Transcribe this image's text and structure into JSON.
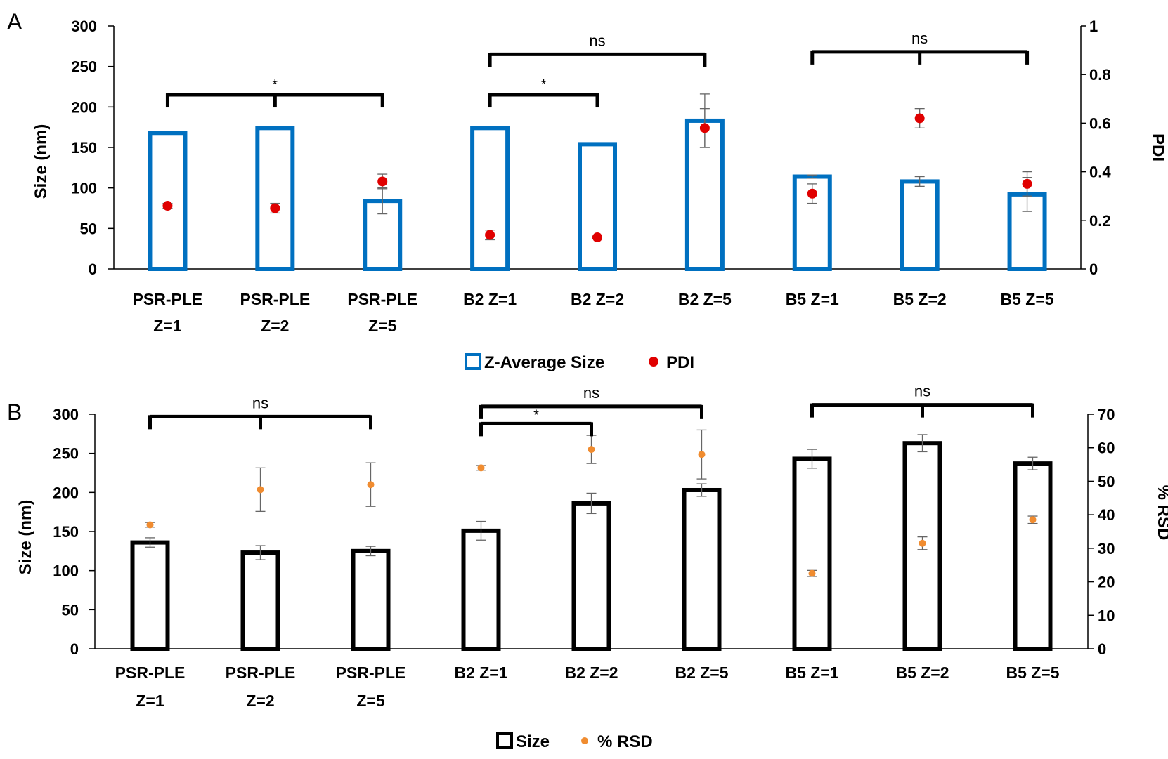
{
  "chart_data": [
    {
      "panel_label": "A",
      "type": "bar",
      "categories": [
        [
          "PSR-PLE",
          "Z=1"
        ],
        [
          "PSR-PLE",
          "Z=2"
        ],
        [
          "PSR-PLE",
          "Z=5"
        ],
        [
          "B2 Z=1"
        ],
        [
          "B2 Z=2"
        ],
        [
          "B2 Z=5"
        ],
        [
          "B5 Z=1"
        ],
        [
          "B5 Z=2"
        ],
        [
          "B5 Z=5"
        ]
      ],
      "ylabel": "Size (nm)",
      "y2label": "PDI",
      "ylim": [
        0,
        300
      ],
      "y2lim": [
        0,
        1
      ],
      "yticks": [
        "0",
        "50",
        "100",
        "150",
        "200",
        "250",
        "300"
      ],
      "y2ticks": [
        "0",
        "0.2",
        "0.4",
        "0.6",
        "0.8",
        "1"
      ],
      "series": [
        {
          "name": "Z-Average Size",
          "kind": "bar",
          "axis": "left",
          "color": "#0070c0",
          "values": [
            168,
            174,
            84,
            174,
            154,
            183,
            114,
            108,
            92
          ],
          "errors": [
            0,
            0,
            16,
            0,
            0,
            33,
            2,
            6,
            21
          ]
        },
        {
          "name": "PDI",
          "kind": "point",
          "axis": "right",
          "color": "#e00000",
          "values": [
            0.26,
            0.25,
            0.36,
            0.14,
            0.13,
            0.58,
            0.31,
            0.62,
            0.35
          ],
          "errors": [
            0.01,
            0.02,
            0.03,
            0.02,
            0.005,
            0.08,
            0.04,
            0.04,
            0.05
          ]
        }
      ],
      "significance": [
        {
          "label": "*",
          "indices": [
            0,
            1,
            2
          ],
          "level": 215
        },
        {
          "label": "*",
          "indices": [
            3,
            4
          ],
          "level": 215
        },
        {
          "label": "ns",
          "indices": [
            3,
            5
          ],
          "level": 265
        },
        {
          "label": "ns",
          "indices": [
            6,
            7,
            8
          ],
          "level": 268
        }
      ],
      "legend_position": "bottom"
    },
    {
      "panel_label": "B",
      "type": "bar",
      "categories": [
        [
          "PSR-PLE",
          "Z=1"
        ],
        [
          "PSR-PLE",
          "Z=2"
        ],
        [
          "PSR-PLE",
          "Z=5"
        ],
        [
          "B2 Z=1"
        ],
        [
          "B2 Z=2"
        ],
        [
          "B2 Z=5"
        ],
        [
          "B5 Z=1"
        ],
        [
          "B5 Z=2"
        ],
        [
          "B5 Z=5"
        ]
      ],
      "ylabel": "Size (nm)",
      "y2label": "% RSD",
      "ylim": [
        0,
        300
      ],
      "y2lim": [
        0,
        70
      ],
      "yticks": [
        "0",
        "50",
        "100",
        "150",
        "200",
        "250",
        "300"
      ],
      "y2ticks": [
        "0",
        "10",
        "20",
        "30",
        "40",
        "50",
        "60",
        "70"
      ],
      "series": [
        {
          "name": "Size",
          "kind": "bar",
          "axis": "left",
          "color": "#000000",
          "values": [
            136,
            123,
            125,
            151,
            186,
            203,
            243,
            263,
            237
          ],
          "errors": [
            6,
            9,
            6,
            12,
            13,
            8,
            12,
            11,
            8
          ]
        },
        {
          "name": "% RSD",
          "kind": "point",
          "axis": "right",
          "color": "#f08c30",
          "values": [
            37,
            47.5,
            49,
            54,
            59.5,
            58,
            22.5,
            31.5,
            38.5
          ],
          "errors": [
            0.7,
            6.5,
            6.5,
            0.7,
            4.2,
            7.3,
            0.9,
            1.9,
            1.1
          ]
        }
      ],
      "significance": [
        {
          "label": "ns",
          "indices": [
            0,
            1,
            2
          ],
          "level": 297
        },
        {
          "label": "*",
          "indices": [
            3,
            4
          ],
          "level": 288
        },
        {
          "label": "ns",
          "indices": [
            3,
            5
          ],
          "level": 310
        },
        {
          "label": "ns",
          "indices": [
            6,
            7,
            8
          ],
          "level": 312
        }
      ],
      "legend_position": "bottom"
    }
  ]
}
